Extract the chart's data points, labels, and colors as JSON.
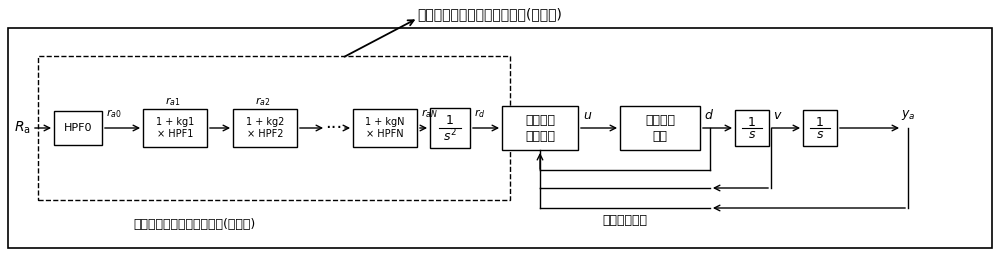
{
  "title_top": "频域分段加速度伺服控制方法(串联式)",
  "title_bottom": "频域分段加速度伺服控制器(串联式)",
  "block_HPF0": "HPF0",
  "block_HPF1": "1 + kg1\n× HPF1",
  "block_HPF2": "1 + kg2\n× HPF2",
  "block_HPFN": "1 + kgN\n× HPFN",
  "block_s2": "1\n—\ns²",
  "block_pos_line1": "位移伺服",
  "block_pos_line2": "控制方法",
  "block_vib_line1": "振动控制",
  "block_vib_line2": "硬件",
  "block_1s": "1\n—\ns",
  "label_status": "状态反馈信号",
  "bg_color": "#ffffff",
  "box_color": "#000000",
  "text_color": "#000000"
}
